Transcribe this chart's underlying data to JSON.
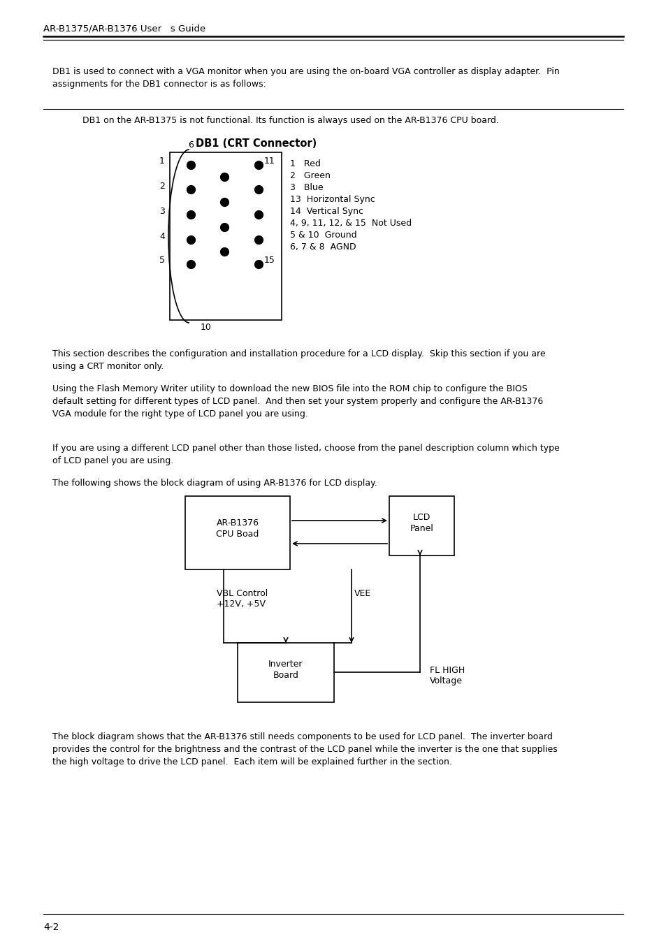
{
  "bg_color": "#ffffff",
  "header_text": "AR-B1375/AR-B1376 User   s Guide",
  "footer_text": "4-2",
  "para1": "DB1 is used to connect with a VGA monitor when you are using the on-board VGA controller as display adapter.  Pin\nassignments for the DB1 connector is as follows:",
  "note_text": "DB1 on the AR-B1375 is not functional. Its function is always used on the AR-B1376 CPU board.",
  "crt_title": "DB1 (CRT Connector)",
  "pin_descriptions": [
    "1   Red",
    "2   Green",
    "3   Blue",
    "13  Horizontal Sync",
    "14  Vertical Sync",
    "4, 9, 11, 12, & 15  Not Used",
    "5 & 10  Ground",
    "6, 7 & 8  AGND"
  ],
  "para2": "This section describes the configuration and installation procedure for a LCD display.  Skip this section if you are\nusing a CRT monitor only.",
  "para3": "Using the Flash Memory Writer utility to download the new BIOS file into the ROM chip to configure the BIOS\ndefault setting for different types of LCD panel.  And then set your system properly and configure the AR-B1376\nVGA module for the right type of LCD panel you are using.",
  "para4": "If you are using a different LCD panel other than those listed, choose from the panel description column which type\nof LCD panel you are using.",
  "para5": "The following shows the block diagram of using AR-B1376 for LCD display.",
  "para6": "The block diagram shows that the AR-B1376 still needs components to be used for LCD panel.  The inverter board\nprovides the control for the brightness and the contrast of the LCD panel while the inverter is the one that supplies\nthe high voltage to drive the LCD panel.  Each item will be explained further in the section.",
  "box_cpu": "AR-B1376\nCPU Boad",
  "box_lcd": "LCD\nPanel",
  "box_vbl": "VBL Control\n+12V, +5V",
  "box_vee": "VEE",
  "box_inv": "Inverter\nBoard",
  "box_fl": "FL HIGH\nVoltage"
}
